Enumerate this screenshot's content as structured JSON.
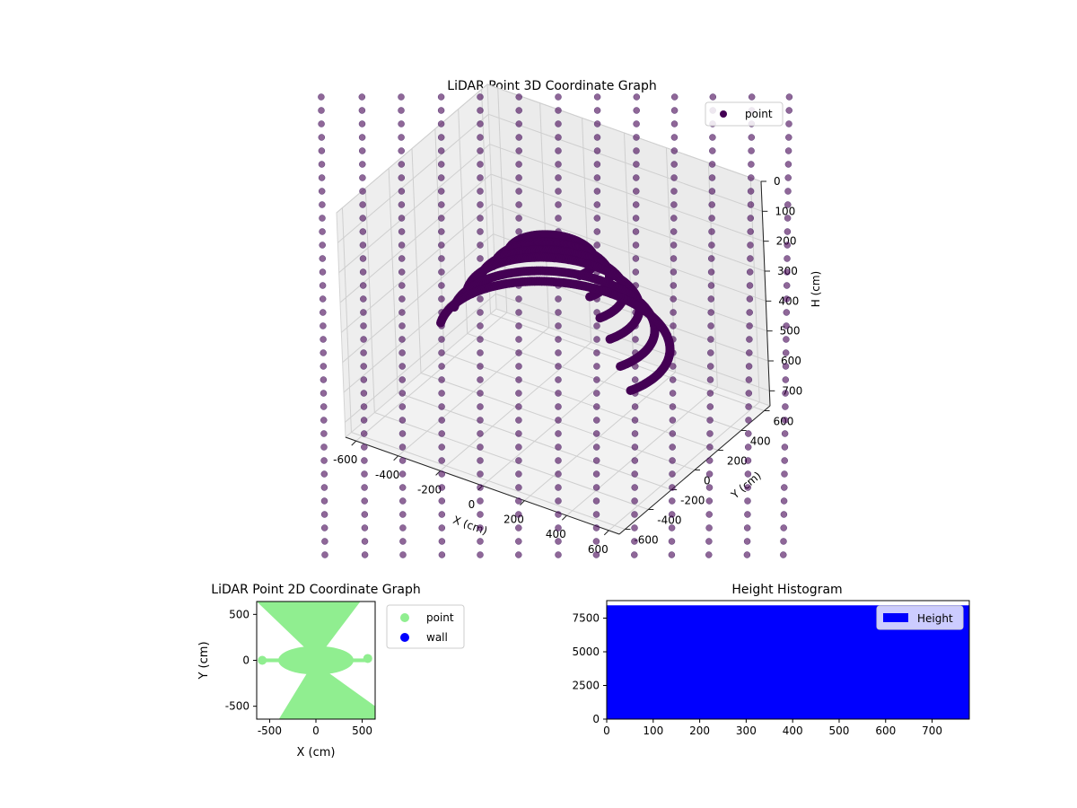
{
  "chart_data": [
    {
      "type": "scatter",
      "projection": "3d",
      "title": "LiDAR Point 3D Coordinate Graph",
      "xlabel": "X (cm)",
      "ylabel": "Y (cm)",
      "zlabel": "H (cm)",
      "xlim": [
        -650,
        650
      ],
      "ylim": [
        -650,
        650
      ],
      "zlim": [
        0,
        750
      ],
      "z_inverted": true,
      "xticks": [
        -600,
        -400,
        -200,
        0,
        200,
        400,
        600
      ],
      "yticks": [
        -600,
        -400,
        -200,
        0,
        200,
        400,
        600
      ],
      "zticks": [
        0,
        100,
        200,
        300,
        400,
        500,
        600,
        700
      ],
      "grid": true,
      "legend": {
        "placement": "top-right",
        "entries": [
          {
            "label": "point",
            "color": "#440154"
          }
        ]
      },
      "series": [
        {
          "name": "point",
          "color": "#440154",
          "description": "concentric arc rings near the sensor",
          "arcs": [
            {
              "radius": 180,
              "z": 200,
              "start_deg": -20,
              "end_deg": 200
            },
            {
              "radius": 240,
              "z": 250,
              "start_deg": -20,
              "end_deg": 200
            },
            {
              "radius": 300,
              "z": 300,
              "start_deg": -20,
              "end_deg": 200
            },
            {
              "radius": 360,
              "z": 350,
              "start_deg": -20,
              "end_deg": 200
            },
            {
              "radius": 420,
              "z": 420,
              "start_deg": -20,
              "end_deg": 200
            },
            {
              "radius": 480,
              "z": 480,
              "start_deg": -20,
              "end_deg": 200
            }
          ]
        }
      ]
    },
    {
      "type": "scatter",
      "title": "LiDAR Point 2D Coordinate Graph",
      "xlabel": "X (cm)",
      "ylabel": "Y (cm)",
      "xlim": [
        -640,
        640
      ],
      "ylim": [
        -640,
        640
      ],
      "xticks": [
        -500,
        0,
        500
      ],
      "yticks": [
        -500,
        0,
        500
      ],
      "legend": {
        "placement": "outside-right",
        "entries": [
          {
            "label": "point",
            "color": "#90ee90"
          },
          {
            "label": "wall",
            "color": "#0000ff"
          }
        ]
      },
      "series": [
        {
          "name": "point",
          "color": "#90ee90",
          "shape": "hourglass (double cone) around the origin"
        },
        {
          "name": "wall",
          "color": "#0000ff",
          "points": []
        }
      ]
    },
    {
      "type": "bar",
      "title": "Height Histogram",
      "xlim": [
        0,
        780
      ],
      "ylim": [
        0,
        8800
      ],
      "xticks": [
        0,
        100,
        200,
        300,
        400,
        500,
        600,
        700
      ],
      "yticks": [
        0,
        2500,
        5000,
        7500
      ],
      "legend": {
        "placement": "top-right",
        "entries": [
          {
            "label": "Height",
            "color": "#0000ff"
          }
        ]
      },
      "series": [
        {
          "name": "Height",
          "color": "#0000ff",
          "bins": [
            {
              "x0": 0,
              "x1": 780,
              "count": 8450
            }
          ]
        }
      ]
    }
  ]
}
